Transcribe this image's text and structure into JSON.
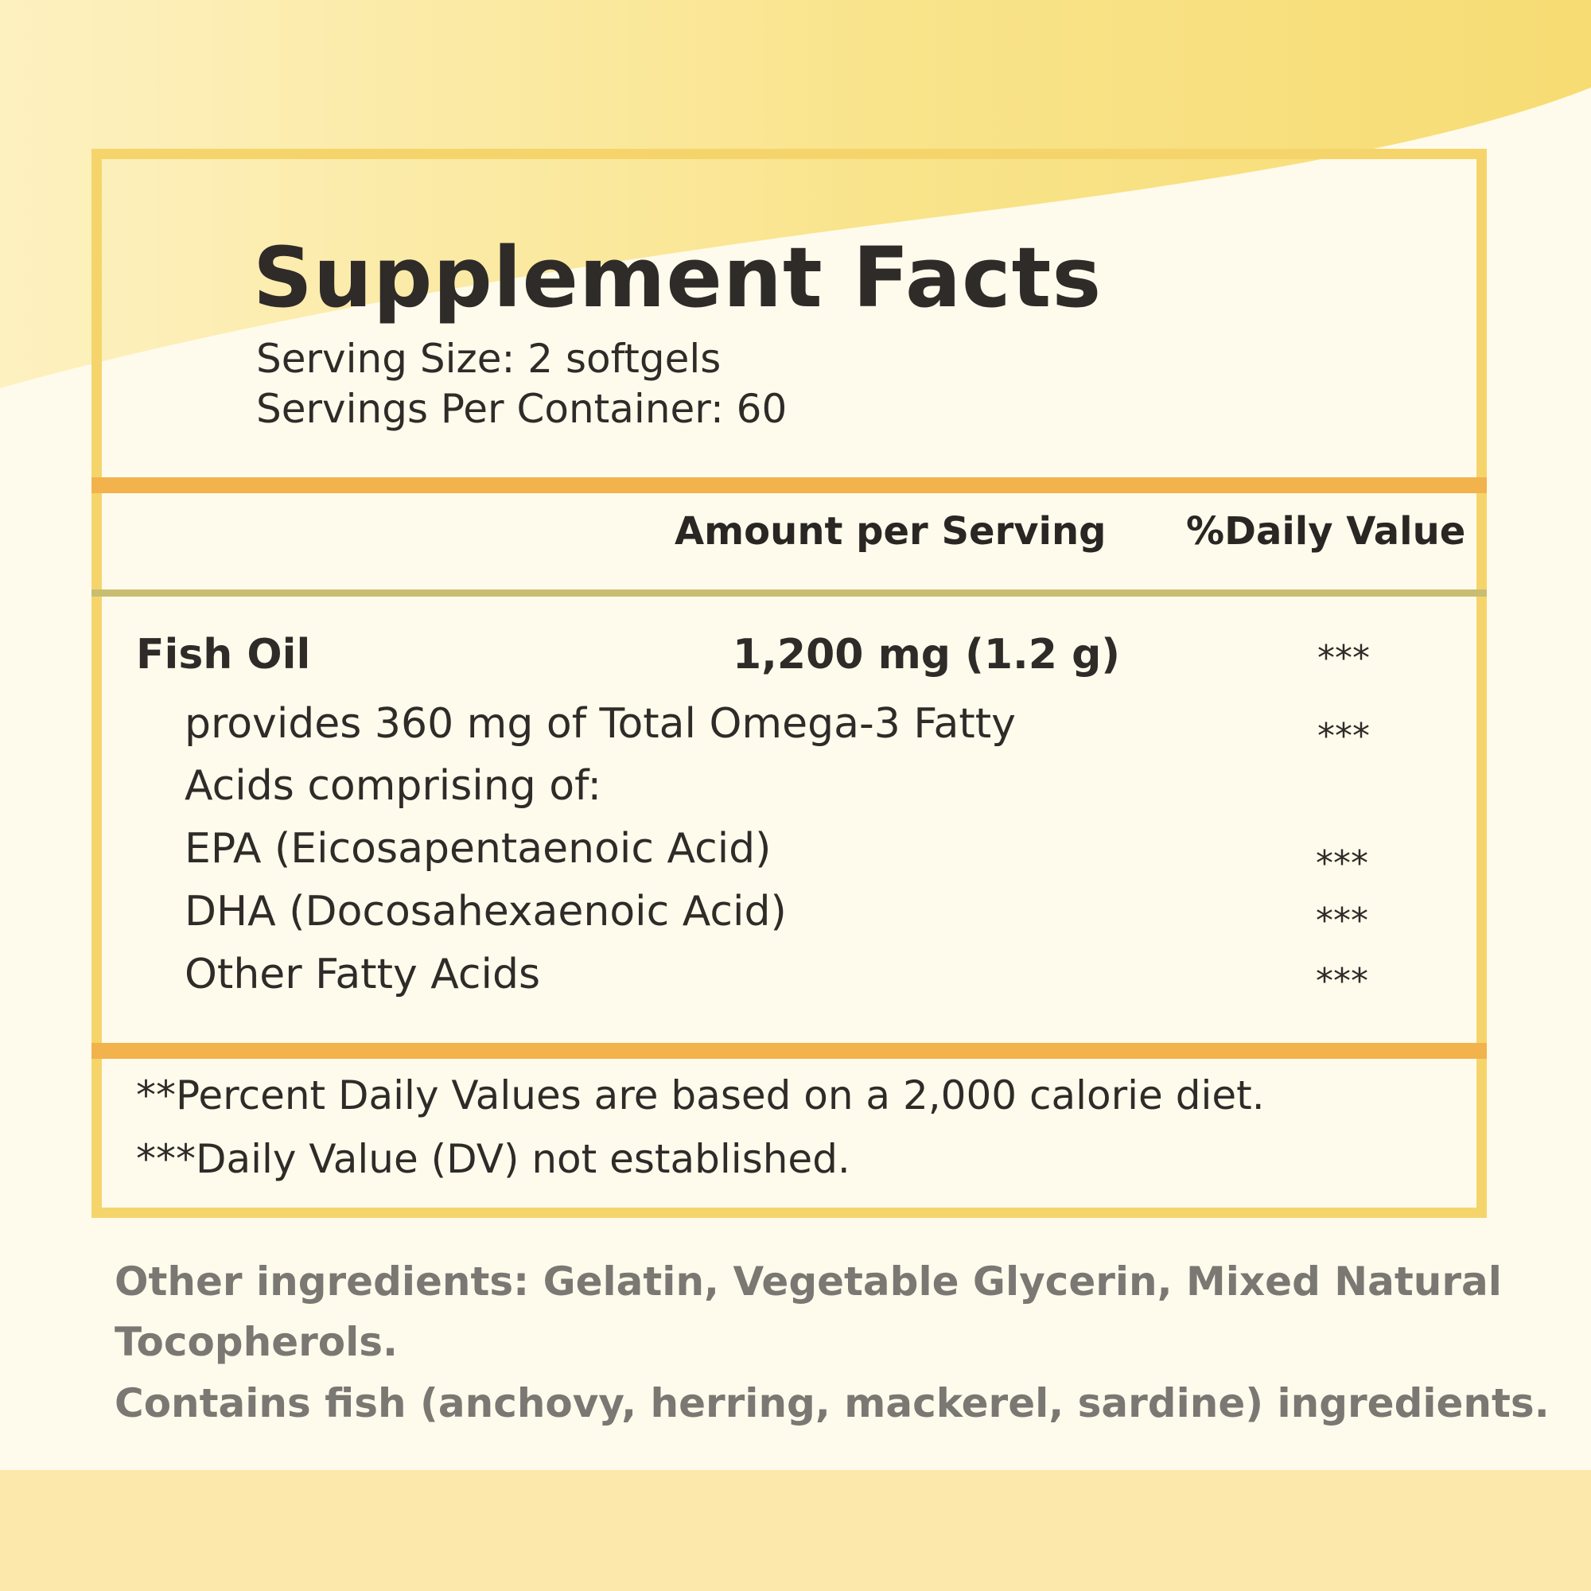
{
  "label": {
    "title": "Supplement Facts",
    "serving_size": "Serving Size: 2 softgels",
    "servings_per_container": "Servings Per Container: 60",
    "columns": {
      "amount": "Amount per Serving",
      "daily_value": "%Daily  Value"
    },
    "rows": [
      {
        "name": "Fish Oil",
        "amount": "1,200 mg (1.2 g)",
        "dv": "***"
      },
      {
        "name_line1": "provides 360 mg of Total Omega-3 Fatty",
        "name_line2": "Acids   comprising of:",
        "dv": "***"
      },
      {
        "name": "EPA (Eicosapentaenoic Acid)",
        "dv": "***"
      },
      {
        "name": "DHA (Docosahexaenoic Acid)",
        "dv": "***"
      },
      {
        "name": "Other Fatty Acids",
        "dv": "***"
      }
    ],
    "footnotes": [
      "**Percent Daily Values are based on a 2,000 calorie diet.",
      "***Daily Value (DV) not established."
    ]
  },
  "other_ingredients": {
    "line1": "Other ingredients: Gelatin, Vegetable Glycerin, Mixed Natural",
    "line2": "Tocopherols.",
    "allergen": "Contains fish (anchovy, herring, mackerel, sardine) ingredients."
  },
  "colors": {
    "border": "#f5d56b",
    "orange_rule": "#f2b24c",
    "thin_rule": "#c9bd71",
    "background": "#fffbec",
    "accent_yellow": "#f8df7a"
  }
}
